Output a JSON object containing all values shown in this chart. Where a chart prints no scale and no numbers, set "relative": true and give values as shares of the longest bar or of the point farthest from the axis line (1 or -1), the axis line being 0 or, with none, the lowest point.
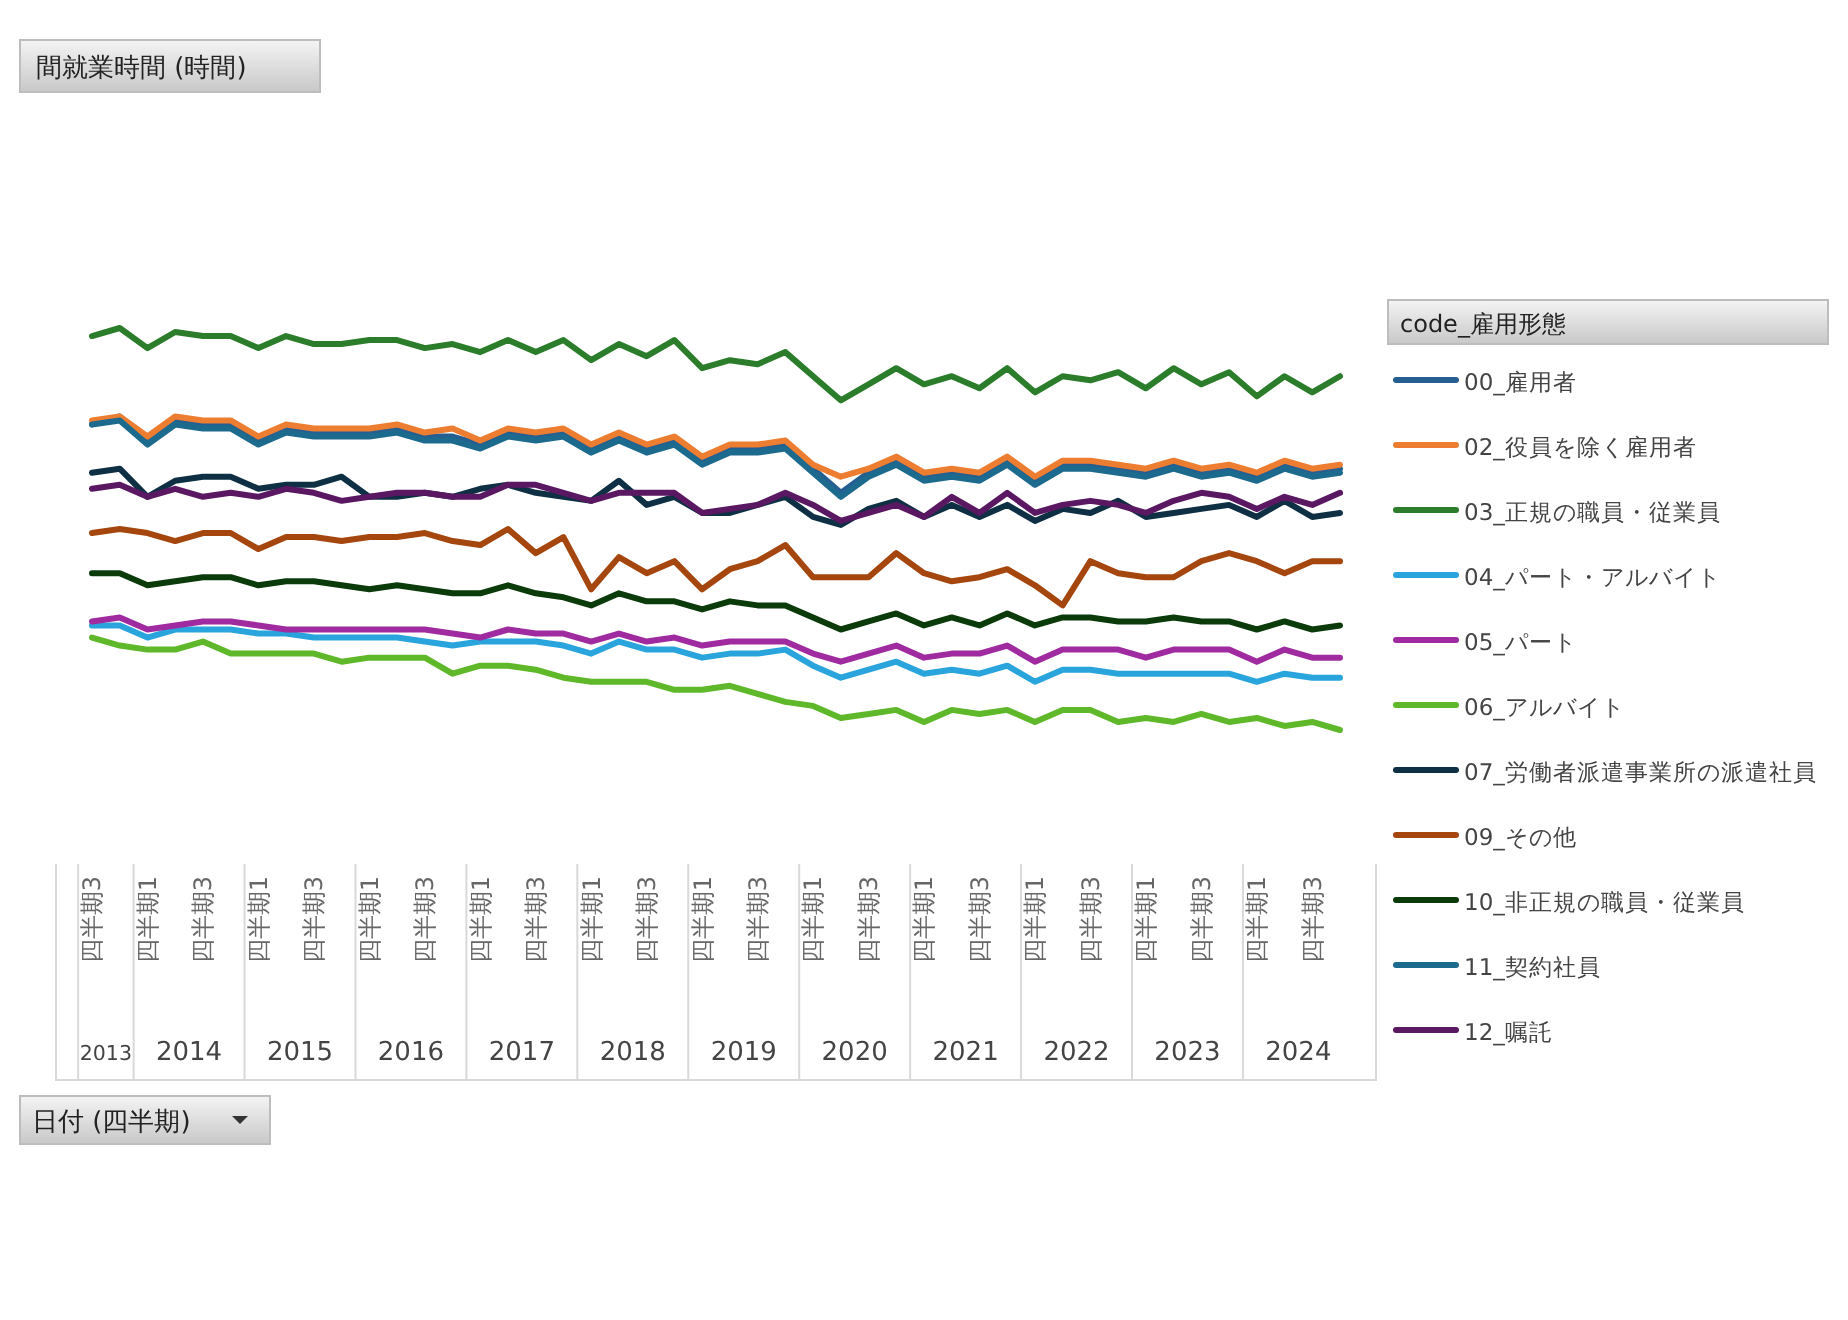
{
  "chart_data": {
    "type": "line",
    "title": "間就業時間 (時間)",
    "legend_title": "code_雇用形態",
    "relative": true,
    "legend": "right",
    "line_style": "solid",
    "marker": "none",
    "categories": [
      "四半期3",
      null,
      "四半期1",
      null,
      "四半期3",
      null,
      "四半期1",
      null,
      "四半期3",
      null,
      "四半期1",
      null,
      "四半期3",
      null,
      "四半期1",
      null,
      "四半期3",
      null,
      "四半期1",
      null,
      "四半期3",
      null,
      "四半期1",
      null,
      "四半期3",
      null,
      "四半期1",
      null,
      "四半期3",
      null,
      "四半期1",
      null,
      "四半期3",
      null,
      "四半期1",
      null,
      "四半期3",
      null,
      "四半期1",
      null,
      "四半期3",
      null,
      "四半期1",
      null,
      "四半期3",
      null
    ],
    "annotations": [
      "2013",
      "2014",
      "2015",
      "2016",
      "2017",
      "2018",
      "2019",
      "2020",
      "2021",
      "2022",
      "2023",
      "2024",
      "日付 (四半期)"
    ],
    "series": [
      {
        "name": "00_雇用者",
        "color": "#255e91",
        "values": [
          0.76,
          0.78,
          0.72,
          0.77,
          0.76,
          0.76,
          0.72,
          0.75,
          0.74,
          0.74,
          0.74,
          0.75,
          0.73,
          0.73,
          0.71,
          0.74,
          0.73,
          0.74,
          0.7,
          0.73,
          0.7,
          0.72,
          0.67,
          0.7,
          0.7,
          0.71,
          0.65,
          0.59,
          0.64,
          0.67,
          0.63,
          0.64,
          0.63,
          0.67,
          0.62,
          0.66,
          0.66,
          0.65,
          0.64,
          0.66,
          0.64,
          0.65,
          0.63,
          0.66,
          0.64,
          0.65
        ]
      },
      {
        "name": "02_役員を除く雇用者",
        "color": "#ed7d31",
        "values": [
          0.77,
          0.78,
          0.73,
          0.78,
          0.77,
          0.77,
          0.73,
          0.76,
          0.75,
          0.75,
          0.75,
          0.76,
          0.74,
          0.75,
          0.72,
          0.75,
          0.74,
          0.75,
          0.71,
          0.74,
          0.71,
          0.73,
          0.68,
          0.71,
          0.71,
          0.72,
          0.66,
          0.63,
          0.65,
          0.68,
          0.64,
          0.65,
          0.64,
          0.68,
          0.63,
          0.67,
          0.67,
          0.66,
          0.65,
          0.67,
          0.65,
          0.66,
          0.64,
          0.67,
          0.65,
          0.66
        ]
      },
      {
        "name": "03_正規の職員・従業員",
        "color": "#2b7d2b",
        "values": [
          0.98,
          1,
          0.95,
          0.99,
          0.98,
          0.98,
          0.95,
          0.98,
          0.96,
          0.96,
          0.97,
          0.97,
          0.95,
          0.96,
          0.94,
          0.97,
          0.94,
          0.97,
          0.92,
          0.96,
          0.93,
          0.97,
          0.9,
          0.92,
          0.91,
          0.94,
          0.88,
          0.82,
          0.86,
          0.9,
          0.86,
          0.88,
          0.85,
          0.9,
          0.84,
          0.88,
          0.87,
          0.89,
          0.85,
          0.9,
          0.86,
          0.89,
          0.83,
          0.88,
          0.84,
          0.88
        ]
      },
      {
        "name": "04_パート・アルバイト",
        "color": "#2aa4dc",
        "values": [
          0.26,
          0.26,
          0.23,
          0.25,
          0.25,
          0.25,
          0.24,
          0.24,
          0.23,
          0.23,
          0.23,
          0.23,
          0.22,
          0.21,
          0.22,
          0.22,
          0.22,
          0.21,
          0.19,
          0.22,
          0.2,
          0.2,
          0.18,
          0.19,
          0.19,
          0.2,
          0.16,
          0.13,
          0.15,
          0.17,
          0.14,
          0.15,
          0.14,
          0.16,
          0.12,
          0.15,
          0.15,
          0.14,
          0.14,
          0.14,
          0.14,
          0.14,
          0.12,
          0.14,
          0.13,
          0.13
        ]
      },
      {
        "name": "05_パート",
        "color": "#a02ba0",
        "values": [
          0.27,
          0.28,
          0.25,
          0.26,
          0.27,
          0.27,
          0.26,
          0.25,
          0.25,
          0.25,
          0.25,
          0.25,
          0.25,
          0.24,
          0.23,
          0.25,
          0.24,
          0.24,
          0.22,
          0.24,
          0.22,
          0.23,
          0.21,
          0.22,
          0.22,
          0.22,
          0.19,
          0.17,
          0.19,
          0.21,
          0.18,
          0.19,
          0.19,
          0.21,
          0.17,
          0.2,
          0.2,
          0.2,
          0.18,
          0.2,
          0.2,
          0.2,
          0.17,
          0.2,
          0.18,
          0.18
        ]
      },
      {
        "name": "06_アルバイト",
        "color": "#5eb82a",
        "values": [
          0.23,
          0.21,
          0.2,
          0.2,
          0.22,
          0.19,
          0.19,
          0.19,
          0.19,
          0.17,
          0.18,
          0.18,
          0.18,
          0.14,
          0.16,
          0.16,
          0.15,
          0.13,
          0.12,
          0.12,
          0.12,
          0.1,
          0.1,
          0.11,
          0.09,
          0.07,
          0.06,
          0.03,
          0.04,
          0.05,
          0.02,
          0.05,
          0.04,
          0.05,
          0.02,
          0.05,
          0.05,
          0.02,
          0.03,
          0.02,
          0.04,
          0.02,
          0.03,
          0.01,
          0.02,
          0
        ]
      },
      {
        "name": "07_労働者派遣事業所の派遣社員",
        "color": "#0e2f44",
        "values": [
          0.64,
          0.65,
          0.58,
          0.62,
          0.63,
          0.63,
          0.6,
          0.61,
          0.61,
          0.63,
          0.58,
          0.58,
          0.59,
          0.58,
          0.6,
          0.61,
          0.59,
          0.58,
          0.57,
          0.62,
          0.56,
          0.58,
          0.54,
          0.54,
          0.56,
          0.58,
          0.53,
          0.51,
          0.55,
          0.57,
          0.53,
          0.56,
          0.53,
          0.56,
          0.52,
          0.55,
          0.54,
          0.57,
          0.53,
          0.54,
          0.55,
          0.56,
          0.53,
          0.57,
          0.53,
          0.54
        ]
      },
      {
        "name": "09_その他",
        "color": "#a5460e",
        "values": [
          0.49,
          0.5,
          0.49,
          0.47,
          0.49,
          0.49,
          0.45,
          0.48,
          0.48,
          0.47,
          0.48,
          0.48,
          0.49,
          0.47,
          0.46,
          0.5,
          0.44,
          0.48,
          0.35,
          0.43,
          0.39,
          0.42,
          0.35,
          0.4,
          0.42,
          0.46,
          0.38,
          0.38,
          0.38,
          0.44,
          0.39,
          0.37,
          0.38,
          0.4,
          0.36,
          0.31,
          0.42,
          0.39,
          0.38,
          0.38,
          0.42,
          0.44,
          0.42,
          0.39,
          0.42,
          0.42
        ]
      },
      {
        "name": "10_非正規の職員・従業員",
        "color": "#0b3a0b",
        "values": [
          0.39,
          0.39,
          0.36,
          0.37,
          0.38,
          0.38,
          0.36,
          0.37,
          0.37,
          0.36,
          0.35,
          0.36,
          0.35,
          0.34,
          0.34,
          0.36,
          0.34,
          0.33,
          0.31,
          0.34,
          0.32,
          0.32,
          0.3,
          0.32,
          0.31,
          0.31,
          0.28,
          0.25,
          0.27,
          0.29,
          0.26,
          0.28,
          0.26,
          0.29,
          0.26,
          0.28,
          0.28,
          0.27,
          0.27,
          0.28,
          0.27,
          0.27,
          0.25,
          0.27,
          0.25,
          0.26
        ]
      },
      {
        "name": "11_契約社員",
        "color": "#1d6a8f",
        "values": [
          0.76,
          0.77,
          0.71,
          0.76,
          0.75,
          0.75,
          0.71,
          0.74,
          0.73,
          0.73,
          0.73,
          0.74,
          0.72,
          0.72,
          0.7,
          0.73,
          0.72,
          0.73,
          0.69,
          0.72,
          0.69,
          0.71,
          0.66,
          0.69,
          0.69,
          0.7,
          0.64,
          0.58,
          0.63,
          0.66,
          0.62,
          0.63,
          0.62,
          0.66,
          0.61,
          0.65,
          0.65,
          0.64,
          0.63,
          0.65,
          0.63,
          0.64,
          0.62,
          0.65,
          0.63,
          0.64
        ]
      },
      {
        "name": "12_嘱託",
        "color": "#5b1862",
        "values": [
          0.6,
          0.61,
          0.58,
          0.6,
          0.58,
          0.59,
          0.58,
          0.6,
          0.59,
          0.57,
          0.58,
          0.59,
          0.59,
          0.58,
          0.58,
          0.61,
          0.61,
          0.59,
          0.57,
          0.59,
          0.59,
          0.59,
          0.54,
          0.55,
          0.56,
          0.59,
          0.56,
          0.52,
          0.54,
          0.56,
          0.53,
          0.58,
          0.54,
          0.59,
          0.54,
          0.56,
          0.57,
          0.56,
          0.54,
          0.57,
          0.59,
          0.58,
          0.55,
          0.58,
          0.56,
          0.59
        ]
      }
    ]
  }
}
